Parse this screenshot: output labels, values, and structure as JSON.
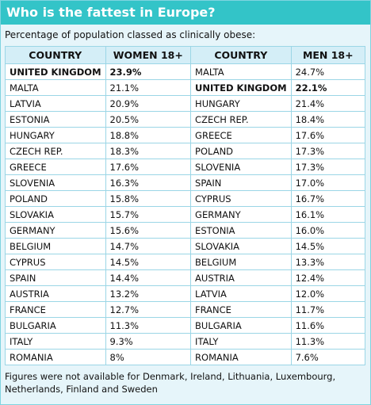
{
  "header": {
    "title": "Who is the fattest in Europe?",
    "subtitle": "Percentage of population classed as clinically obese:"
  },
  "table": {
    "columns": [
      "COUNTRY",
      "WOMEN 18+",
      "COUNTRY",
      "MEN 18+"
    ],
    "rows": [
      [
        "UNITED KINGDOM",
        "23.9%",
        "MALTA",
        "24.7%"
      ],
      [
        "MALTA",
        "21.1%",
        "UNITED KINGDOM",
        "22.1%"
      ],
      [
        "LATVIA",
        "20.9%",
        "HUNGARY",
        "21.4%"
      ],
      [
        "ESTONIA",
        "20.5%",
        "CZECH REP.",
        "18.4%"
      ],
      [
        "HUNGARY",
        "18.8%",
        "GREECE",
        "17.6%"
      ],
      [
        "CZECH REP.",
        "18.3%",
        "POLAND",
        "17.3%"
      ],
      [
        "GREECE",
        "17.6%",
        "SLOVENIA",
        "17.3%"
      ],
      [
        "SLOVENIA",
        "16.3%",
        "SPAIN",
        "17.0%"
      ],
      [
        "POLAND",
        "15.8%",
        "CYPRUS",
        "16.7%"
      ],
      [
        "SLOVAKIA",
        "15.7%",
        "GERMANY",
        "16.1%"
      ],
      [
        "GERMANY",
        "15.6%",
        "ESTONIA",
        "16.0%"
      ],
      [
        "BELGIUM",
        "14.7%",
        "SLOVAKIA",
        "14.5%"
      ],
      [
        "CYPRUS",
        "14.5%",
        "BELGIUM",
        "13.3%"
      ],
      [
        "SPAIN",
        "14.4%",
        "AUSTRIA",
        "12.4%"
      ],
      [
        "AUSTRIA",
        "13.2%",
        "LATVIA",
        "12.0%"
      ],
      [
        "FRANCE",
        "12.7%",
        "FRANCE",
        "11.7%"
      ],
      [
        "BULGARIA",
        "11.3%",
        "BULGARIA",
        "11.6%"
      ],
      [
        "ITALY",
        "9.3%",
        "ITALY",
        "11.3%"
      ],
      [
        "ROMANIA",
        "8%",
        "ROMANIA",
        "7.6%"
      ]
    ]
  },
  "footer": {
    "note": "Figures were not available for Denmark, Ireland, Lithuania, Luxembourg, Netherlands, Finland and Sweden"
  }
}
